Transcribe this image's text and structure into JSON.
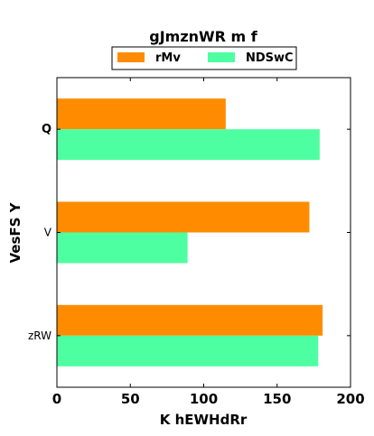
{
  "chart_data": {
    "type": "bar",
    "orientation": "horizontal",
    "title": "gJmznWR m f",
    "xlabel": "K hEWHdRr",
    "ylabel": "VesFS Y",
    "categories": [
      "Q",
      "V",
      "zRW"
    ],
    "series": [
      {
        "name": "rMv",
        "values": [
          115,
          172,
          181
        ],
        "color": "#ff8c00"
      },
      {
        "name": "NDSwC",
        "values": [
          179,
          89,
          178
        ],
        "color": "#4dffa0"
      }
    ],
    "xlim": [
      0,
      200
    ],
    "xticks": [
      "0",
      "50",
      "100",
      "150",
      "200"
    ],
    "grid": false,
    "legend_position": "top"
  }
}
